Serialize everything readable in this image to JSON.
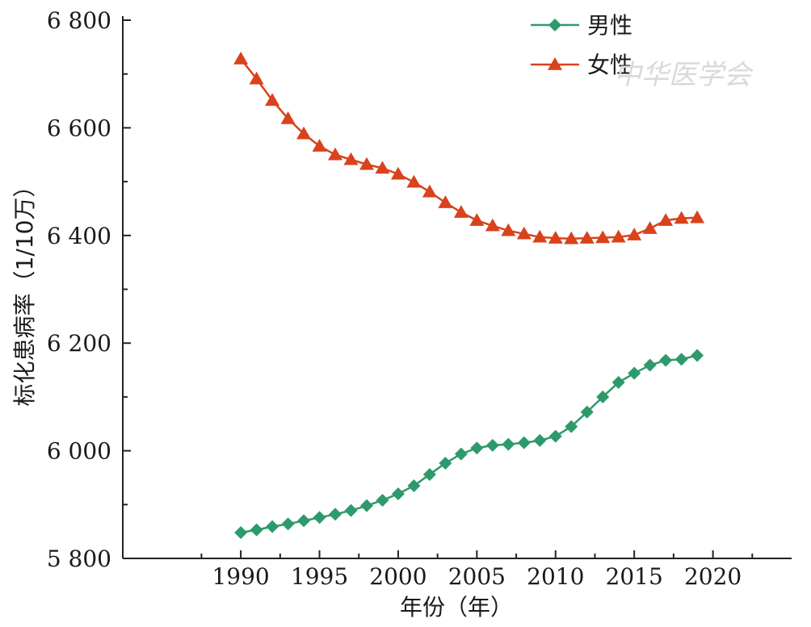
{
  "chart_data": {
    "type": "line",
    "title": "",
    "xlabel": "年份（年）",
    "ylabel": "标化患病率（1/10万）",
    "xlim": [
      1982.5,
      2025
    ],
    "ylim": [
      5800,
      6800
    ],
    "xticks": [
      1990,
      1995,
      2000,
      2005,
      2010,
      2015,
      2020
    ],
    "yticks": [
      5800,
      6000,
      6200,
      6400,
      6600,
      6800
    ],
    "ytick_labels": [
      "5 800",
      "6 000",
      "6 200",
      "6 400",
      "6 600",
      "6 800"
    ],
    "grid": false,
    "legend_position": "top-right",
    "x": [
      1990,
      1991,
      1992,
      1993,
      1994,
      1995,
      1996,
      1997,
      1998,
      1999,
      2000,
      2001,
      2002,
      2003,
      2004,
      2005,
      2006,
      2007,
      2008,
      2009,
      2010,
      2011,
      2012,
      2013,
      2014,
      2015,
      2016,
      2017,
      2018,
      2019
    ],
    "series": [
      {
        "name": "男性",
        "color": "#2e9a6c",
        "marker": "diamond",
        "values": [
          5848,
          5853,
          5859,
          5864,
          5870,
          5876,
          5882,
          5889,
          5898,
          5908,
          5920,
          5935,
          5956,
          5977,
          5994,
          6005,
          6010,
          6012,
          6015,
          6019,
          6027,
          6045,
          6072,
          6100,
          6127,
          6144,
          6159,
          6168,
          6170,
          6177
        ]
      },
      {
        "name": "女性",
        "color": "#d9421c",
        "marker": "triangle",
        "values": [
          6728,
          6691,
          6651,
          6617,
          6589,
          6566,
          6550,
          6541,
          6532,
          6525,
          6514,
          6499,
          6481,
          6461,
          6443,
          6428,
          6418,
          6409,
          6403,
          6397,
          6395,
          6394,
          6395,
          6396,
          6397,
          6401,
          6413,
          6428,
          6432,
          6433
        ]
      }
    ],
    "watermark": "中华医学会"
  }
}
